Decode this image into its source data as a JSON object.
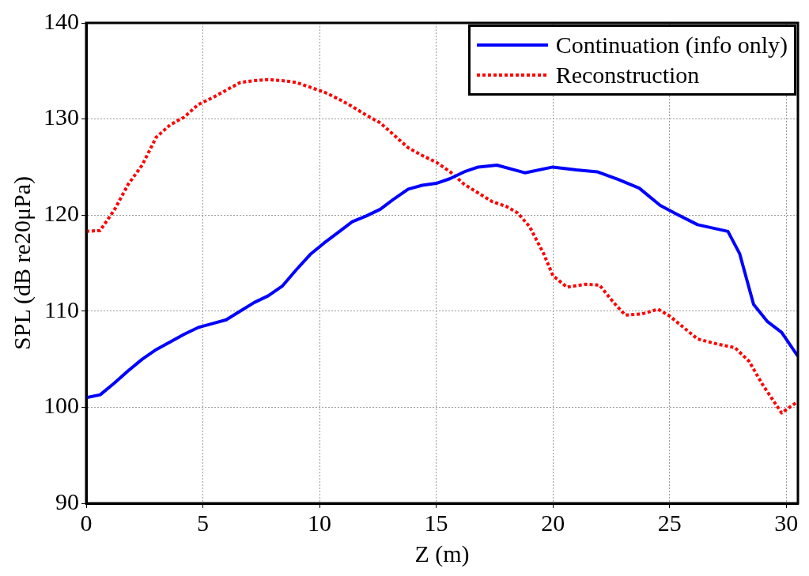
{
  "chart_data": {
    "type": "line",
    "xlabel": "Z (m)",
    "ylabel": "SPL (dB re20μPa)",
    "xlim": [
      0,
      30.5
    ],
    "ylim": [
      90,
      140
    ],
    "xticks": [
      0,
      5,
      10,
      15,
      20,
      25,
      30
    ],
    "yticks": [
      90,
      100,
      110,
      120,
      130,
      140
    ],
    "grid": true,
    "legend": "top right",
    "marker": "none",
    "series": [
      {
        "name": "Continuation (info only)",
        "color": "#0000ff",
        "line_style": "solid",
        "x": [
          0,
          0.6,
          1.2,
          1.8,
          2.4,
          3,
          3.6,
          4.2,
          4.8,
          5.4,
          6,
          6.6,
          7.2,
          7.8,
          8.4,
          9,
          9.6,
          10.2,
          10.8,
          11.4,
          12,
          12.6,
          13.2,
          13.8,
          14.4,
          15,
          15.6,
          16.2,
          16.8,
          17.6,
          18.8,
          20,
          21,
          21.9,
          22.8,
          23.7,
          24.6,
          25.3,
          26.2,
          27.5,
          28,
          28.6,
          29.2,
          29.8,
          30.5
        ],
        "values": [
          101,
          101.3,
          102.5,
          103.8,
          105,
          106,
          106.8,
          107.6,
          108.3,
          108.7,
          109.1,
          110,
          110.9,
          111.6,
          112.6,
          114.3,
          115.9,
          117.1,
          118.2,
          119.3,
          119.9,
          120.6,
          121.7,
          122.7,
          123.1,
          123.3,
          123.8,
          124.5,
          125,
          125.2,
          124.4,
          125,
          124.7,
          124.5,
          123.7,
          122.8,
          121,
          120.1,
          119,
          118.3,
          116,
          110.7,
          108.9,
          107.8,
          105.3
        ]
      },
      {
        "name": "Reconstruction",
        "color": "#ff0000",
        "line_style": "dotted",
        "x": [
          0,
          0.6,
          1.2,
          1.8,
          2.4,
          3,
          3.6,
          4.2,
          4.8,
          5.4,
          6,
          6.6,
          7.2,
          7.8,
          8.4,
          9,
          9.6,
          10.2,
          10.8,
          11.4,
          12,
          12.6,
          13.2,
          13.8,
          14.4,
          15,
          15.6,
          16.2,
          16.8,
          17.4,
          18,
          18.5,
          19,
          19.6,
          20,
          20.6,
          21.4,
          22,
          22.6,
          23.1,
          23.8,
          24.5,
          25,
          25.6,
          26.2,
          27,
          27.8,
          28.4,
          29,
          29.8,
          30.5
        ],
        "values": [
          118.3,
          118.4,
          120.5,
          123.2,
          125.2,
          128.1,
          129.4,
          130.2,
          131.5,
          132.2,
          133,
          133.8,
          134,
          134.1,
          134,
          133.8,
          133.3,
          132.8,
          132.1,
          131.3,
          130.4,
          129.6,
          128.3,
          127,
          126.2,
          125.5,
          124.5,
          123.2,
          122.3,
          121.4,
          120.9,
          120.2,
          118.8,
          116,
          113.7,
          112.5,
          112.8,
          112.7,
          110.9,
          109.6,
          109.7,
          110.2,
          109.5,
          108.3,
          107.1,
          106.6,
          106.2,
          104.8,
          102.3,
          99.4,
          100.6
        ]
      }
    ]
  }
}
